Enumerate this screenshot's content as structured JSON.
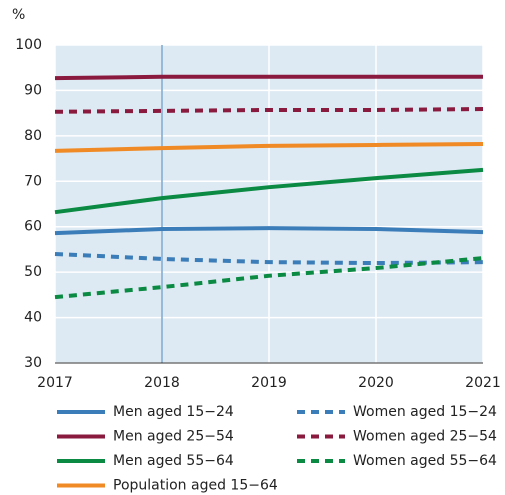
{
  "chart_data": {
    "type": "line",
    "unit_label": "%",
    "x": [
      2017,
      2018,
      2019,
      2020,
      2021
    ],
    "xlim": [
      2017,
      2021
    ],
    "xticks": [
      2017,
      2018,
      2019,
      2020,
      2021
    ],
    "ylim": [
      30,
      100
    ],
    "yticks": [
      30,
      40,
      50,
      60,
      70,
      80,
      90,
      100
    ],
    "grid": true,
    "highlight_x": 2018,
    "highlight_color": "#7aa6cf",
    "background": "#dde9f3",
    "series": [
      {
        "name": "Men aged 15−24",
        "color": "#3b7db8",
        "style": "solid",
        "values": [
          58.6,
          59.5,
          59.7,
          59.5,
          58.8
        ]
      },
      {
        "name": "Men aged 25−54",
        "color": "#8a1b3f",
        "style": "solid",
        "values": [
          92.7,
          93.0,
          93.0,
          93.0,
          93.0
        ]
      },
      {
        "name": "Men aged 55−64",
        "color": "#0a8a42",
        "style": "solid",
        "values": [
          63.2,
          66.3,
          68.7,
          70.7,
          72.5
        ]
      },
      {
        "name": "Population aged 15−64",
        "color": "#f08a24",
        "style": "solid",
        "values": [
          76.7,
          77.3,
          77.8,
          78.0,
          78.2
        ]
      },
      {
        "name": "Women aged 15−24",
        "color": "#3b7db8",
        "style": "dashed",
        "values": [
          54.0,
          52.9,
          52.2,
          52.0,
          52.2
        ]
      },
      {
        "name": "Women aged 25−54",
        "color": "#8a1b3f",
        "style": "dashed",
        "values": [
          85.3,
          85.5,
          85.7,
          85.7,
          85.9
        ]
      },
      {
        "name": "Women aged 55−64",
        "color": "#0a8a42",
        "style": "dashed",
        "values": [
          44.5,
          46.7,
          49.2,
          50.9,
          53.1
        ]
      }
    ]
  }
}
